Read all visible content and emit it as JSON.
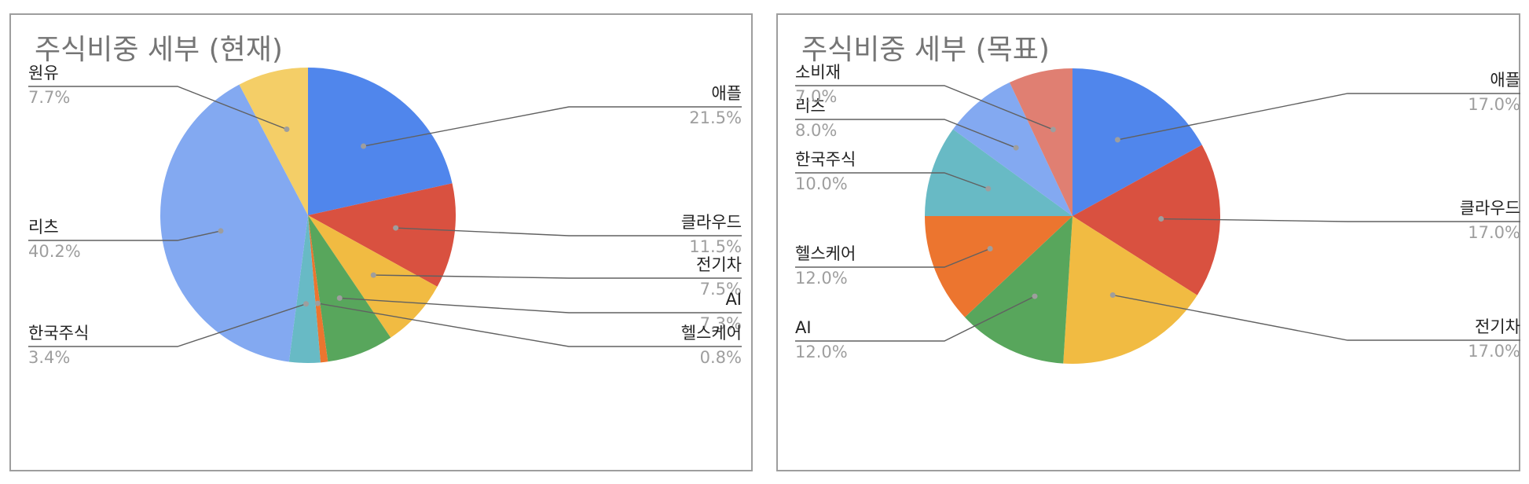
{
  "chart_data": [
    {
      "type": "pie",
      "title": "주식비중 세부 (현재)",
      "slices": [
        {
          "label": "애플",
          "value": 21.5,
          "value_label": "21.5%",
          "color": "#5086EC"
        },
        {
          "label": "클라우드",
          "value": 11.5,
          "value_label": "11.5%",
          "color": "#D95140"
        },
        {
          "label": "전기차",
          "value": 7.5,
          "value_label": "7.5%",
          "color": "#F1BB42"
        },
        {
          "label": "AI",
          "value": 7.3,
          "value_label": "7.3%",
          "color": "#58A65C"
        },
        {
          "label": "헬스케어",
          "value": 0.8,
          "value_label": "0.8%",
          "color": "#EC752F"
        },
        {
          "label": "한국주식",
          "value": 3.4,
          "value_label": "3.4%",
          "color": "#68BAC5"
        },
        {
          "label": "리츠",
          "value": 40.2,
          "value_label": "40.2%",
          "color": "#83A9F1"
        },
        {
          "label": "원유",
          "value": 7.7,
          "value_label": "7.7%",
          "color": "#F4CE67"
        }
      ]
    },
    {
      "type": "pie",
      "title": "주식비중 세부 (목표)",
      "slices": [
        {
          "label": "애플",
          "value": 17.0,
          "value_label": "17.0%",
          "color": "#5086EC"
        },
        {
          "label": "클라우드",
          "value": 17.0,
          "value_label": "17.0%",
          "color": "#D95140"
        },
        {
          "label": "전기차",
          "value": 17.0,
          "value_label": "17.0%",
          "color": "#F1BB42"
        },
        {
          "label": "AI",
          "value": 12.0,
          "value_label": "12.0%",
          "color": "#58A65C"
        },
        {
          "label": "헬스케어",
          "value": 12.0,
          "value_label": "12.0%",
          "color": "#EC752F"
        },
        {
          "label": "한국주식",
          "value": 10.0,
          "value_label": "10.0%",
          "color": "#68BAC5"
        },
        {
          "label": "리츠",
          "value": 8.0,
          "value_label": "8.0%",
          "color": "#83A9F1"
        },
        {
          "label": "소비재",
          "value": 7.0,
          "value_label": "7.0%",
          "color": "#E07F72"
        }
      ]
    }
  ]
}
